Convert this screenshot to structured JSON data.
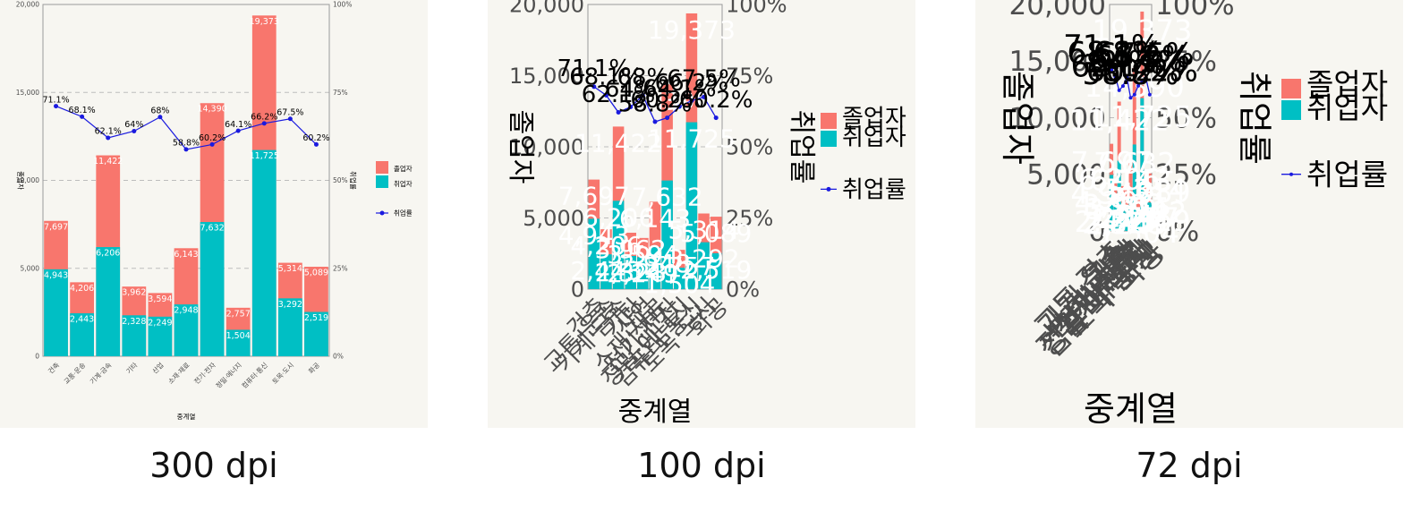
{
  "panels": [
    {
      "caption": "300 dpi"
    },
    {
      "caption": "100 dpi"
    },
    {
      "caption": "72 dpi"
    }
  ],
  "chart_data": {
    "type": "bar",
    "stacked": true,
    "xlabel": "중계열",
    "ylabel": "졸업자",
    "y2label": "취업률",
    "ylim": [
      0,
      20000
    ],
    "y2lim": [
      0,
      100
    ],
    "yticks": [
      "0",
      "5,000",
      "10,000",
      "15,000",
      "20,000"
    ],
    "y2ticks": [
      "0%",
      "25%",
      "50%",
      "75%",
      "100%"
    ],
    "grid": true,
    "legend_position": "right",
    "categories": [
      "건축",
      "교통·운송",
      "기계·금속",
      "기타",
      "산업",
      "소재·재료",
      "전기·전자",
      "정밀·에너지",
      "컴퓨터·통신",
      "토목·도시",
      "화공"
    ],
    "series": [
      {
        "name": "졸업자",
        "color": "#f8766d",
        "values": [
          7697,
          4206,
          11422,
          3962,
          3594,
          6143,
          14390,
          2757,
          19373,
          5314,
          5089
        ]
      },
      {
        "name": "취업자",
        "color": "#00bfc4",
        "values": [
          4943,
          2443,
          6206,
          2328,
          2249,
          2948,
          7632,
          1504,
          11725,
          3292,
          2519
        ]
      },
      {
        "name": "취업률",
        "color": "#1a1adf",
        "type": "line",
        "axis": "right",
        "values": [
          71.1,
          68.1,
          62.1,
          64.0,
          68.0,
          58.8,
          60.2,
          64.1,
          66.2,
          67.5,
          60.2
        ],
        "labels": [
          "71.1%",
          "68.1%",
          "62.1%",
          "64%",
          "68%",
          "58.8%",
          "60.2%",
          "64.1%",
          "66.2%",
          "67.5%",
          "60.2%"
        ]
      }
    ]
  }
}
